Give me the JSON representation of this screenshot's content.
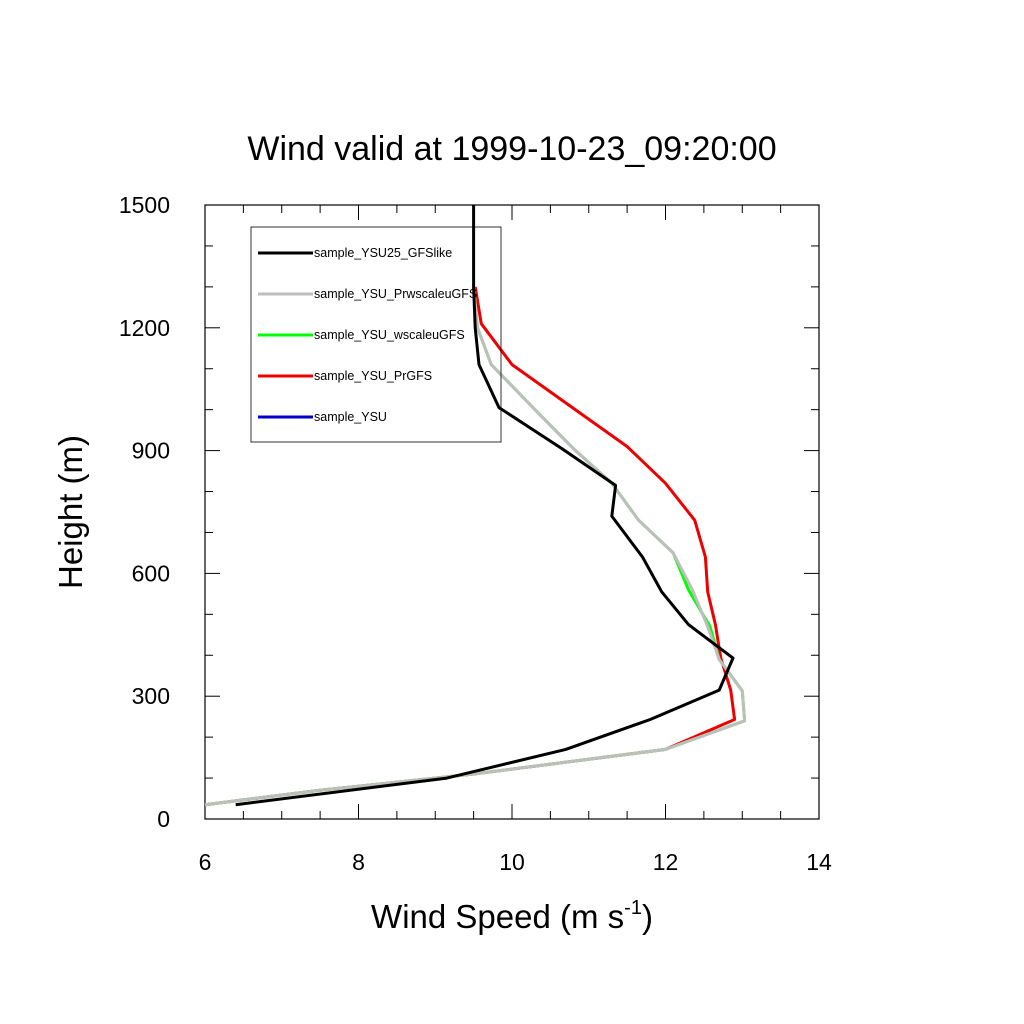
{
  "chart_data": {
    "type": "line",
    "title": "Wind valid at 1999-10-23_09:20:00",
    "xlabel": "Wind Speed",
    "xlabel_units_base": "(m s",
    "xlabel_units_exp": "-1",
    "xlabel_units_close": ")",
    "ylabel": "Height (m)",
    "xlim": [
      6,
      14
    ],
    "ylim": [
      0,
      1500
    ],
    "x_ticks": [
      6,
      8,
      10,
      12,
      14
    ],
    "y_ticks": [
      0,
      300,
      600,
      900,
      1200,
      1500
    ],
    "grid": false,
    "legend_position": "top-left",
    "series": [
      {
        "name": "sample_YSU25_GFSlike",
        "color": "#000000",
        "points": [
          [
            6.4,
            35
          ],
          [
            9.15,
            100
          ],
          [
            10.7,
            170
          ],
          [
            11.8,
            243
          ],
          [
            12.7,
            315
          ],
          [
            12.88,
            393
          ],
          [
            12.3,
            475
          ],
          [
            11.95,
            555
          ],
          [
            11.7,
            640
          ],
          [
            11.3,
            740
          ],
          [
            11.35,
            815
          ],
          [
            10.65,
            905
          ],
          [
            9.83,
            1005
          ],
          [
            9.57,
            1110
          ],
          [
            9.52,
            1200
          ],
          [
            9.5,
            1300
          ],
          [
            9.5,
            1500
          ]
        ]
      },
      {
        "name": "sample_YSU_PrwscaleuGFS",
        "color": "#bebebe",
        "points": [
          [
            6.0,
            35
          ],
          [
            7.5,
            70
          ],
          [
            9.5,
            110
          ],
          [
            12.0,
            170
          ],
          [
            13.03,
            240
          ],
          [
            13.0,
            313
          ],
          [
            12.7,
            390
          ],
          [
            12.55,
            470
          ],
          [
            12.35,
            560
          ],
          [
            12.1,
            650
          ],
          [
            11.65,
            730
          ],
          [
            11.3,
            820
          ],
          [
            10.8,
            905
          ],
          [
            10.3,
            1000
          ],
          [
            9.73,
            1110
          ],
          [
            9.55,
            1200
          ],
          [
            9.5,
            1300
          ]
        ]
      },
      {
        "name": "sample_YSU_wscaleuGFS",
        "color": "#00ff00",
        "points": [
          [
            6.0,
            35
          ],
          [
            7.5,
            70
          ],
          [
            9.5,
            110
          ],
          [
            12.0,
            170
          ],
          [
            13.03,
            240
          ],
          [
            13.0,
            313
          ],
          [
            12.7,
            390
          ],
          [
            12.58,
            470
          ],
          [
            12.3,
            560
          ],
          [
            12.1,
            650
          ],
          [
            11.65,
            730
          ],
          [
            11.3,
            820
          ],
          [
            10.8,
            905
          ],
          [
            10.3,
            1000
          ],
          [
            9.73,
            1110
          ],
          [
            9.55,
            1200
          ],
          [
            9.5,
            1300
          ]
        ]
      },
      {
        "name": "sample_YSU_PrGFS",
        "color": "#ee0000",
        "points": [
          [
            6.0,
            35
          ],
          [
            7.5,
            70
          ],
          [
            9.5,
            110
          ],
          [
            12.0,
            170
          ],
          [
            12.9,
            243
          ],
          [
            12.85,
            315
          ],
          [
            12.72,
            393
          ],
          [
            12.65,
            475
          ],
          [
            12.55,
            555
          ],
          [
            12.52,
            640
          ],
          [
            12.38,
            730
          ],
          [
            12.0,
            820
          ],
          [
            11.5,
            910
          ],
          [
            10.75,
            1010
          ],
          [
            10.0,
            1110
          ],
          [
            9.6,
            1210
          ],
          [
            9.52,
            1300
          ]
        ]
      },
      {
        "name": "sample_YSU",
        "color": "#0000cc",
        "points": []
      }
    ]
  }
}
